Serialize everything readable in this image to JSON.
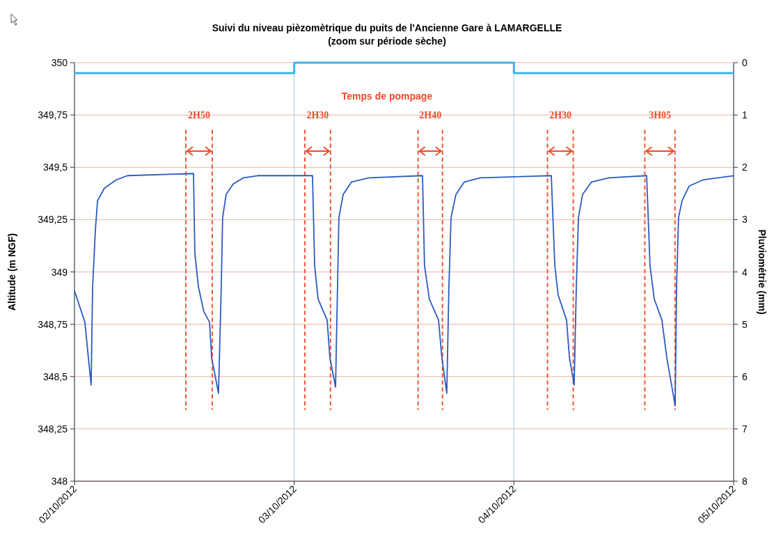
{
  "chart_data": {
    "type": "line",
    "title": "Suivi du niveau pièzomètrique du puits de l'Ancienne Gare à LAMARGELLE",
    "subtitle": "(zoom sur période sèche)",
    "ylabel": "Altitude (m NGF)",
    "y2label": "Pluviométrie (mm)",
    "xlim": [
      "2012-10-02",
      "2012-10-05"
    ],
    "xticks": [
      {
        "value": "2012-10-02",
        "label": "02/10/2012"
      },
      {
        "value": "2012-10-03",
        "label": "03/10/2012"
      },
      {
        "value": "2012-10-04",
        "label": "04/10/2012"
      },
      {
        "value": "2012-10-05",
        "label": "05/10/2012"
      }
    ],
    "ylim": [
      348,
      350
    ],
    "yticks": [
      348,
      {
        "value": 348.25,
        "label": "348,25"
      },
      {
        "value": 348.5,
        "label": "348,5"
      },
      {
        "value": 348.75,
        "label": "348,75"
      },
      349,
      {
        "value": 349.25,
        "label": "349,25"
      },
      {
        "value": 349.5,
        "label": "349,5"
      },
      {
        "value": 349.75,
        "label": "349,75"
      },
      350
    ],
    "y2lim": [
      8,
      0
    ],
    "y2ticks": [
      0,
      1,
      2,
      3,
      4,
      5,
      6,
      7,
      8
    ],
    "grid": true,
    "line_style": "solid",
    "marker": "none",
    "series": [
      {
        "color": "#2a5bbf",
        "x": [
          "2012-10-02T00:00",
          "2012-10-02T01:08",
          "2012-10-02T01:49",
          "2012-10-02T01:59",
          "2012-10-02T02:17",
          "2012-10-02T02:31",
          "2012-10-02T03:16",
          "2012-10-02T04:34",
          "2012-10-02T05:47",
          "2012-10-02T13:00",
          "2012-10-02T13:09",
          "2012-10-02T13:32",
          "2012-10-02T14:08",
          "2012-10-02T14:45",
          "2012-10-02T14:59",
          "2012-10-02T15:44",
          "2012-10-02T16:02",
          "2012-10-02T16:11",
          "2012-10-02T16:34",
          "2012-10-02T17:20",
          "2012-10-02T18:28",
          "2012-10-02T20:00",
          "2012-10-03T02:00",
          "2012-10-03T02:14",
          "2012-10-03T02:37",
          "2012-10-03T03:36",
          "2012-10-03T03:54",
          "2012-10-03T04:31",
          "2012-10-03T04:44",
          "2012-10-03T04:53",
          "2012-10-03T05:21",
          "2012-10-03T06:16",
          "2012-10-03T08:10",
          "2012-10-03T14:01",
          "2012-10-03T14:14",
          "2012-10-03T14:46",
          "2012-10-03T15:46",
          "2012-10-03T16:08",
          "2012-10-03T16:40",
          "2012-10-03T16:54",
          "2012-10-03T17:08",
          "2012-10-03T17:40",
          "2012-10-03T18:35",
          "2012-10-03T20:19",
          "2012-10-04T04:05",
          "2012-10-04T04:28",
          "2012-10-04T04:50",
          "2012-10-04T05:45",
          "2012-10-04T06:04",
          "2012-10-04T06:35",
          "2012-10-04T06:49",
          "2012-10-04T07:03",
          "2012-10-04T07:30",
          "2012-10-04T08:29",
          "2012-10-04T10:23",
          "2012-10-04T14:30",
          "2012-10-04T14:52",
          "2012-10-04T15:20",
          "2012-10-04T16:10",
          "2012-10-04T16:42",
          "2012-10-04T17:37",
          "2012-10-04T17:46",
          "2012-10-04T17:59",
          "2012-10-04T18:22",
          "2012-10-04T19:08",
          "2012-10-04T20:39",
          "2012-10-05T00:00"
        ],
        "values": [
          348.91,
          348.76,
          348.46,
          348.93,
          349.2,
          349.34,
          349.4,
          349.44,
          349.46,
          349.47,
          349.09,
          348.93,
          348.81,
          348.76,
          348.59,
          348.42,
          348.93,
          349.26,
          349.37,
          349.42,
          349.45,
          349.46,
          349.46,
          349.03,
          348.87,
          348.77,
          348.59,
          348.45,
          348.93,
          349.26,
          349.37,
          349.43,
          349.45,
          349.46,
          349.03,
          348.87,
          348.77,
          348.59,
          348.42,
          348.93,
          349.26,
          349.37,
          349.43,
          349.45,
          349.46,
          349.03,
          348.89,
          348.77,
          348.59,
          348.46,
          348.93,
          349.26,
          349.37,
          349.43,
          349.45,
          349.46,
          349.03,
          348.87,
          348.77,
          348.59,
          348.36,
          348.93,
          349.26,
          349.34,
          349.41,
          349.44,
          349.46
        ]
      },
      {
        "type": "step",
        "axis": "y2",
        "color": "#3cb4e6",
        "x": [
          "2012-10-02",
          "2012-10-03",
          "2012-10-04",
          "2012-10-05"
        ],
        "values": [
          0.2,
          0,
          0.2,
          0.2
        ]
      }
    ],
    "ref_lines": [
      {
        "axis": "x",
        "value": "2012-10-02T12:10",
        "color": "#f2553a",
        "line_style": "dashed"
      },
      {
        "axis": "x",
        "value": "2012-10-02T15:03",
        "color": "#f2553a",
        "line_style": "dashed"
      },
      {
        "axis": "x",
        "value": "2012-10-03T01:10",
        "color": "#f2553a",
        "line_style": "dashed"
      },
      {
        "axis": "x",
        "value": "2012-10-03T03:58",
        "color": "#f2553a",
        "line_style": "dashed"
      },
      {
        "axis": "x",
        "value": "2012-10-03T13:32",
        "color": "#f2553a",
        "line_style": "dashed"
      },
      {
        "axis": "x",
        "value": "2012-10-03T16:12",
        "color": "#f2553a",
        "line_style": "dashed"
      },
      {
        "axis": "x",
        "value": "2012-10-04T03:40",
        "color": "#f2553a",
        "line_style": "dashed"
      },
      {
        "axis": "x",
        "value": "2012-10-04T06:29",
        "color": "#f2553a",
        "line_style": "dashed"
      },
      {
        "axis": "x",
        "value": "2012-10-04T14:18",
        "color": "#f2553a",
        "line_style": "dashed"
      },
      {
        "axis": "x",
        "value": "2012-10-04T17:36",
        "color": "#f2553a",
        "line_style": "dashed"
      }
    ],
    "annotations": [
      "2H50",
      "2H30",
      "2H40",
      "2H30",
      "3H05",
      "Temps de pompage"
    ]
  }
}
